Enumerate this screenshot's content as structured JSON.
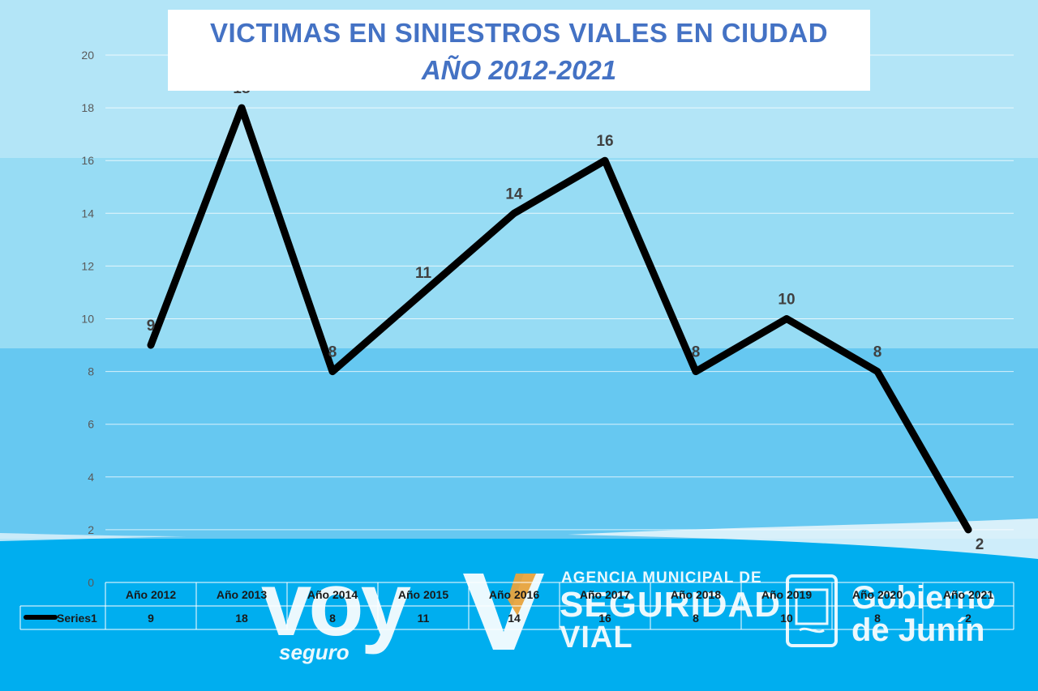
{
  "title": "VICTIMAS EN SINIESTROS VIALES EN CIUDAD",
  "subtitle": "AÑO 2012-2021",
  "colors": {
    "title": "#4472c4",
    "line": "#000000",
    "axis_text": "#595959",
    "label_text": "#404040",
    "bg_top": "#b3e5f7",
    "bg_mid": "#97dcf4",
    "bg_low": "#66c8f1",
    "bg_bottom": "#00aeef"
  },
  "chart_data": {
    "type": "line",
    "categories": [
      "Año 2012",
      "Año 2013",
      "Año 2014",
      "Año 2015",
      "Año 2016",
      "Año 2017",
      "Año 2018",
      "Año 2019",
      "Año 2020",
      "Año 2021"
    ],
    "series": [
      {
        "name": "Series1",
        "values": [
          9,
          18,
          8,
          11,
          14,
          16,
          8,
          10,
          8,
          2
        ]
      }
    ],
    "ylim": [
      0,
      20
    ],
    "yticks": [
      0,
      2,
      4,
      6,
      8,
      10,
      12,
      14,
      16,
      18,
      20
    ],
    "grid": true,
    "data_labels": true,
    "data_table": true
  },
  "logos": {
    "voy": "voy",
    "voy_sub": "seguro",
    "agency_line1": "AGENCIA MUNICIPAL DE",
    "agency_line2": "SEGURIDAD",
    "agency_line3": "VIAL",
    "gov_line1": "Gobierno",
    "gov_line2": "de Junín"
  }
}
